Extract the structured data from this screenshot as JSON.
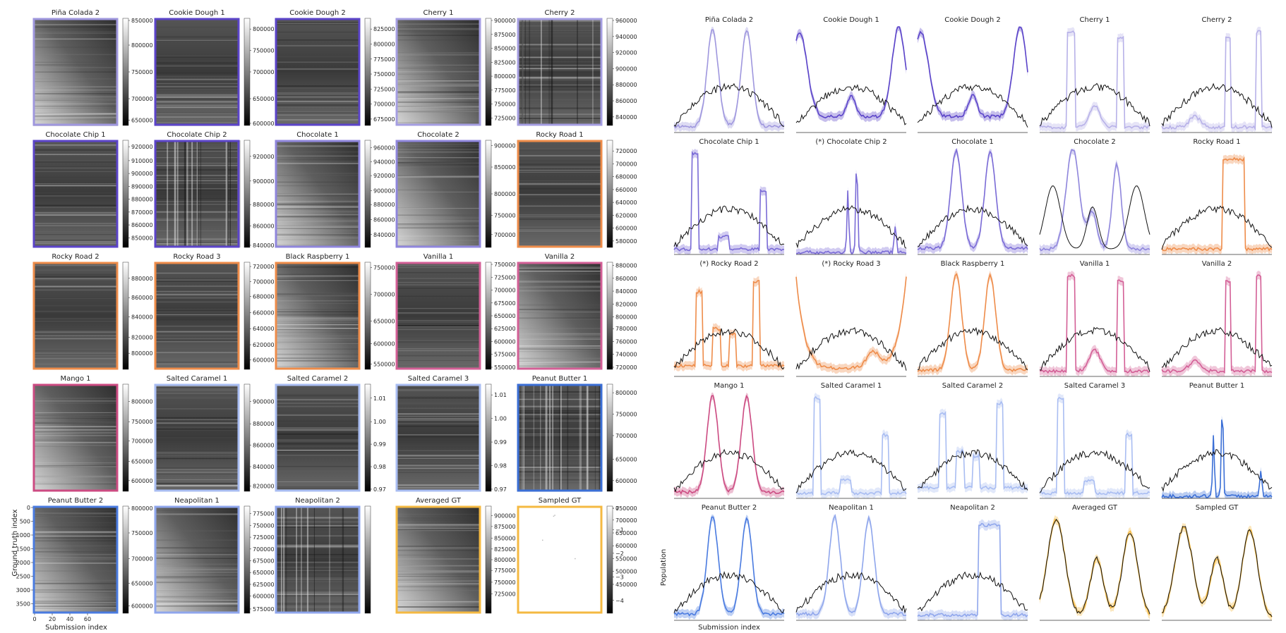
{
  "left_panel": {
    "xlabel": "Submission index",
    "ylabel": "Ground truth index",
    "x_ticks": [
      "0",
      "20",
      "40",
      "60"
    ],
    "y_ticks": [
      "0",
      "500",
      "1000",
      "1500",
      "2000",
      "2500",
      "3000",
      "3500"
    ]
  },
  "right_panel": {
    "xlabel": "Submission index",
    "ylabel": "Population"
  },
  "heatmaps": [
    {
      "title": "Piña Colada 2",
      "color": "#9f97de",
      "style": "diag",
      "ticks": [
        "850000",
        "800000",
        "750000",
        "700000",
        "650000"
      ],
      "tick_pos": [
        0.02,
        0.25,
        0.5,
        0.75,
        0.95
      ]
    },
    {
      "title": "Cookie Dough 1",
      "color": "#5b44c9",
      "style": "rows",
      "ticks": [
        "800000",
        "750000",
        "700000",
        "650000",
        "600000"
      ],
      "tick_pos": [
        0.1,
        0.3,
        0.5,
        0.75,
        0.98
      ]
    },
    {
      "title": "Cookie Dough 2",
      "color": "#5b44c9",
      "style": "rows",
      "ticks": [
        "825000",
        "800000",
        "775000",
        "750000",
        "725000",
        "700000",
        "675000"
      ],
      "tick_pos": [
        0.1,
        0.24,
        0.38,
        0.52,
        0.66,
        0.8,
        0.94
      ]
    },
    {
      "title": "Cherry 1",
      "color": "#a59ee2",
      "style": "diag",
      "ticks": [
        "900000",
        "875000",
        "850000",
        "825000",
        "800000",
        "775000",
        "750000",
        "725000"
      ],
      "tick_pos": [
        0.02,
        0.15,
        0.28,
        0.41,
        0.54,
        0.67,
        0.8,
        0.93
      ]
    },
    {
      "title": "Cherry 2",
      "color": "#a59ee2",
      "style": "grid",
      "ticks": [
        "960000",
        "940000",
        "920000",
        "900000",
        "880000",
        "860000",
        "840000"
      ],
      "tick_pos": [
        0.02,
        0.17,
        0.32,
        0.47,
        0.62,
        0.77,
        0.92
      ]
    },
    {
      "title": "Chocolate Chip 1",
      "color": "#5b44c9",
      "style": "rows",
      "ticks": [
        "920000",
        "910000",
        "900000",
        "890000",
        "880000",
        "870000",
        "860000",
        "850000"
      ],
      "tick_pos": [
        0.06,
        0.19,
        0.31,
        0.43,
        0.55,
        0.67,
        0.79,
        0.91
      ]
    },
    {
      "title": "Chocolate Chip 2",
      "color": "#5b44c9",
      "style": "cols",
      "ticks": [
        "920000",
        "900000",
        "880000",
        "860000",
        "840000"
      ],
      "tick_pos": [
        0.15,
        0.38,
        0.6,
        0.8,
        0.98
      ]
    },
    {
      "title": "Chocolate 1",
      "color": "#8f86dc",
      "style": "diag",
      "ticks": [
        "960000",
        "940000",
        "920000",
        "900000",
        "880000",
        "860000",
        "840000"
      ],
      "tick_pos": [
        0.07,
        0.2,
        0.33,
        0.47,
        0.6,
        0.74,
        0.88
      ]
    },
    {
      "title": "Chocolate 2",
      "color": "#8f86dc",
      "style": "diag",
      "ticks": [
        "900000",
        "850000",
        "800000",
        "750000",
        "700000"
      ],
      "tick_pos": [
        0.05,
        0.25,
        0.5,
        0.7,
        0.88
      ]
    },
    {
      "title": "Rocky Road 1",
      "color": "#ee8c4a",
      "style": "rows",
      "ticks": [
        "720000",
        "700000",
        "680000",
        "660000",
        "640000",
        "620000",
        "600000",
        "580000"
      ],
      "tick_pos": [
        0.1,
        0.22,
        0.34,
        0.46,
        0.58,
        0.7,
        0.82,
        0.94
      ]
    },
    {
      "title": "Rocky Road 2",
      "color": "#ee8c4a",
      "style": "rows",
      "ticks": [
        "880000",
        "860000",
        "840000",
        "820000",
        "800000"
      ],
      "tick_pos": [
        0.15,
        0.33,
        0.51,
        0.7,
        0.85
      ]
    },
    {
      "title": "Rocky Road 3",
      "color": "#ee8c4a",
      "style": "rows",
      "ticks": [
        "720000",
        "700000",
        "680000",
        "660000",
        "640000",
        "620000",
        "600000"
      ],
      "tick_pos": [
        0.04,
        0.18,
        0.32,
        0.47,
        0.62,
        0.77,
        0.91
      ]
    },
    {
      "title": "Black Raspberry 1",
      "color": "#ee8c4a",
      "style": "diag",
      "ticks": [
        "750000",
        "700000",
        "650000",
        "600000",
        "550000"
      ],
      "tick_pos": [
        0.05,
        0.3,
        0.55,
        0.76,
        0.95
      ]
    },
    {
      "title": "Vanilla 1",
      "color": "#d35f96",
      "style": "rows",
      "ticks": [
        "750000",
        "725000",
        "700000",
        "675000",
        "650000",
        "625000",
        "600000",
        "575000",
        "550000"
      ],
      "tick_pos": [
        0.02,
        0.14,
        0.26,
        0.38,
        0.5,
        0.62,
        0.74,
        0.86,
        0.98
      ]
    },
    {
      "title": "Vanilla 2",
      "color": "#d35f96",
      "style": "diag",
      "ticks": [
        "880000",
        "860000",
        "840000",
        "820000",
        "800000",
        "780000",
        "760000",
        "740000",
        "720000"
      ],
      "tick_pos": [
        0.03,
        0.15,
        0.27,
        0.39,
        0.51,
        0.62,
        0.74,
        0.86,
        0.98
      ]
    },
    {
      "title": "Mango 1",
      "color": "#cc4b82",
      "style": "diag",
      "ticks": [
        "800000",
        "750000",
        "700000",
        "650000",
        "600000"
      ],
      "tick_pos": [
        0.16,
        0.35,
        0.53,
        0.72,
        0.9
      ]
    },
    {
      "title": "Salted Caramel 1",
      "color": "#a9bdf2",
      "style": "rows",
      "ticks": [
        "900000",
        "880000",
        "860000",
        "840000",
        "820000"
      ],
      "tick_pos": [
        0.16,
        0.37,
        0.57,
        0.77,
        0.95
      ]
    },
    {
      "title": "Salted Caramel 2",
      "color": "#a9bdf2",
      "style": "rows",
      "ticks": [
        "1.01",
        "1.00",
        "0.99",
        "0.98",
        "0.97"
      ],
      "tick_pos": [
        0.13,
        0.35,
        0.56,
        0.77,
        0.98
      ]
    },
    {
      "title": "Salted Caramel 3",
      "color": "#a9bdf2",
      "style": "rows",
      "ticks": [
        "1.01",
        "1.00",
        "0.99",
        "0.98",
        "0.97"
      ],
      "tick_pos": [
        0.1,
        0.32,
        0.54,
        0.76,
        0.98
      ]
    },
    {
      "title": "Peanut Butter 1",
      "color": "#3b6fd6",
      "style": "cols",
      "ticks": [
        "800000",
        "750000",
        "700000",
        "650000",
        "600000"
      ],
      "tick_pos": [
        0.08,
        0.28,
        0.48,
        0.7,
        0.9
      ]
    },
    {
      "title": "Peanut Butter 2",
      "color": "#4a7be0",
      "style": "diag",
      "ticks": [
        "800000",
        "750000",
        "700000",
        "650000",
        "600000"
      ],
      "tick_pos": [
        0.02,
        0.25,
        0.49,
        0.72,
        0.93
      ]
    },
    {
      "title": "Neapolitan 1",
      "color": "#8fa6ec",
      "style": "diag",
      "ticks": [
        "775000",
        "750000",
        "725000",
        "700000",
        "675000",
        "650000",
        "625000",
        "600000",
        "575000"
      ],
      "tick_pos": [
        0.07,
        0.18,
        0.29,
        0.4,
        0.51,
        0.62,
        0.73,
        0.84,
        0.96
      ]
    },
    {
      "title": "Neapolitan 2",
      "color": "#8fa6ec",
      "style": "grid",
      "ticks": [],
      "tick_pos": []
    },
    {
      "title": "Averaged GT",
      "color": "#f4b942",
      "style": "diag",
      "ticks": [
        "900000",
        "875000",
        "850000",
        "825000",
        "800000",
        "775000",
        "750000",
        "725000"
      ],
      "tick_pos": [
        0.09,
        0.19,
        0.3,
        0.4,
        0.5,
        0.6,
        0.71,
        0.82
      ]
    },
    {
      "title": "Sampled GT",
      "color": "#f4b942",
      "style": "white",
      "ticks": [
        "750000",
        "700000",
        "650000",
        "600000",
        "550000",
        "500000",
        "450000",
        "0",
        "−1",
        "−2",
        "−3",
        "−4"
      ],
      "tick_pos": [
        0.02,
        0.13,
        0.25,
        0.37,
        0.49,
        0.61,
        0.73,
        0.02,
        0.22,
        0.44,
        0.66,
        0.88
      ]
    }
  ],
  "chart_data": {
    "type": "line",
    "series_note_colors": {
      "black": "#111111"
    },
    "charts": [
      {
        "title": "Piña Colada 2",
        "color": "#9f97de",
        "shape": "two_peaks"
      },
      {
        "title": "Cookie Dough 1",
        "color": "#5b44c9",
        "shape": "edges_high"
      },
      {
        "title": "Cookie Dough 2",
        "color": "#5b44c9",
        "shape": "edges_high"
      },
      {
        "title": "Cherry 1",
        "color": "#b7b1e8",
        "shape": "two_peaks_wide"
      },
      {
        "title": "Cherry 2",
        "color": "#b7b1e8",
        "shape": "two_peaks_right"
      },
      {
        "title": "Chocolate Chip 1",
        "color": "#7a6bd6",
        "shape": "left_block"
      },
      {
        "title": "(*) Chocolate Chip 2",
        "color": "#7a6bd6",
        "shape": "spikes"
      },
      {
        "title": "Chocolate 1",
        "color": "#7a6bd6",
        "shape": "two_peaks"
      },
      {
        "title": "Chocolate 2",
        "color": "#8f86dc",
        "shape": "three_bumps"
      },
      {
        "title": "Rocky Road 1",
        "color": "#ee8c4a",
        "shape": "single_block"
      },
      {
        "title": "(*) Rocky Road 2",
        "color": "#ee8c4a",
        "shape": "blocks_multi"
      },
      {
        "title": "(*) Rocky Road 3",
        "color": "#ee8c4a",
        "shape": "u_shape"
      },
      {
        "title": "Black Raspberry 1",
        "color": "#ee8c4a",
        "shape": "two_peaks"
      },
      {
        "title": "Vanilla 1",
        "color": "#d35f96",
        "shape": "two_peaks_wide"
      },
      {
        "title": "Vanilla 2",
        "color": "#d35f96",
        "shape": "two_peaks_right"
      },
      {
        "title": "Mango 1",
        "color": "#cc4b82",
        "shape": "two_peaks"
      },
      {
        "title": "Salted Caramel 1",
        "color": "#a9bdf2",
        "shape": "left_block"
      },
      {
        "title": "Salted Caramel 2",
        "color": "#a9bdf2",
        "shape": "blocks_multi"
      },
      {
        "title": "Salted Caramel 3",
        "color": "#a9bdf2",
        "shape": "left_block"
      },
      {
        "title": "Peanut Butter 1",
        "color": "#3b6fd6",
        "shape": "spikes"
      },
      {
        "title": "Peanut Butter 2",
        "color": "#4a7be0",
        "shape": "two_peaks"
      },
      {
        "title": "Neapolitan 1",
        "color": "#8fa6ec",
        "shape": "two_peaks"
      },
      {
        "title": "Neapolitan 2",
        "color": "#8fa6ec",
        "shape": "single_block"
      },
      {
        "title": "Averaged GT",
        "color": "#f4b942",
        "shape": "gt_three"
      },
      {
        "title": "Sampled GT",
        "color": "#f4b942",
        "shape": "gt_three_noisy"
      }
    ]
  }
}
